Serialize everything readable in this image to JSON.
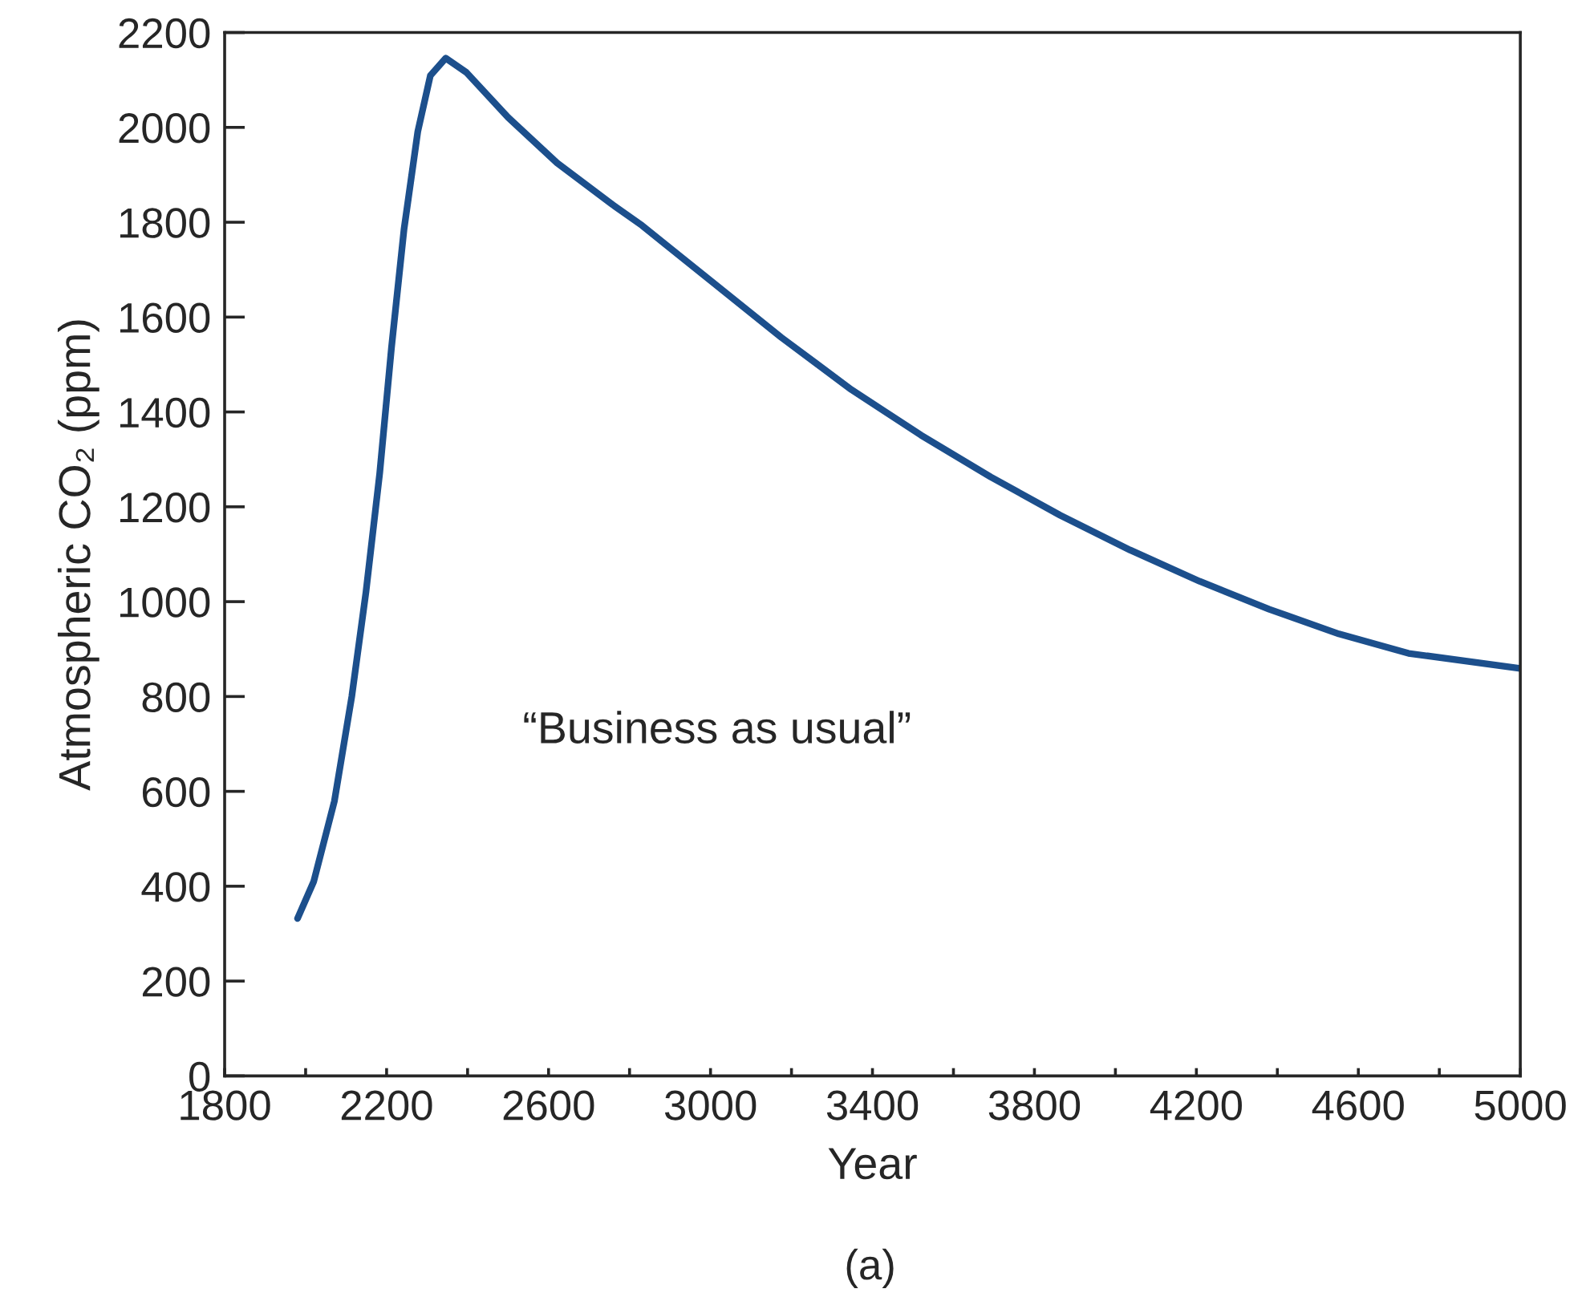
{
  "chart_data": {
    "type": "line",
    "xlabel": "Year",
    "ylabel": "Atmospheric CO₂ (ppm)",
    "annotations": [
      "“Business as usual”",
      "(a)"
    ],
    "series": [
      {
        "color": "#1c4f8c",
        "x": [
          1980,
          2020,
          2071,
          2114,
          2149,
          2183,
          2212,
          2243,
          2277,
          2308,
          2346,
          2397,
          2500,
          2621,
          2758,
          2831,
          2895,
          3003,
          3175,
          3348,
          3520,
          3692,
          3864,
          4036,
          4208,
          4380,
          4552,
          4724,
          5000
        ],
        "values": [
          332,
          410,
          579,
          800,
          1020,
          1271,
          1535,
          1785,
          1991,
          2109,
          2146,
          2116,
          2021,
          1925,
          1837,
          1793,
          1749,
          1675,
          1557,
          1447,
          1351,
          1263,
          1182,
          1109,
          1043,
          984,
          932,
          891,
          859
        ]
      }
    ],
    "xlim": [
      1800,
      5000
    ],
    "xticks": [
      1800,
      {
        "value": 2000,
        "label": null
      },
      2200,
      {
        "value": 2400,
        "label": null
      },
      2600,
      {
        "value": 2800,
        "label": null
      },
      3000,
      {
        "value": 3200,
        "label": null
      },
      3400,
      {
        "value": 3600,
        "label": null
      },
      3800,
      {
        "value": 4000,
        "label": null
      },
      4200,
      {
        "value": 4400,
        "label": null
      },
      4600,
      {
        "value": 4800,
        "label": null
      },
      5000
    ],
    "ylim": [
      0,
      2200
    ],
    "yticks": [
      0,
      200,
      400,
      600,
      800,
      1000,
      1200,
      1400,
      1600,
      1800,
      2000,
      2200
    ],
    "grid": false,
    "legend": false,
    "marker": "none",
    "line_style": "solid"
  }
}
